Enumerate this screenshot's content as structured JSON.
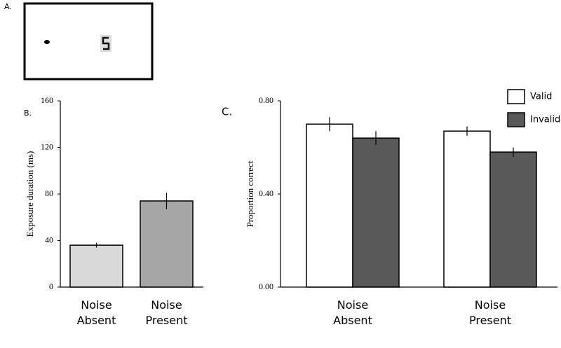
{
  "panel_labels": [
    "A.",
    "B.",
    "C."
  ],
  "chart_data": [
    {
      "type": "bar",
      "y_label": "Exposure duration (ms)",
      "categories": [
        "Noise Absent",
        "Noise Present"
      ],
      "values": [
        36,
        74
      ],
      "errors": [
        2,
        7
      ],
      "colors": [
        "#d9d9d9",
        "#a6a6a6"
      ],
      "ylim": [
        0,
        160
      ],
      "yticks": [
        0,
        40,
        80,
        120,
        160
      ]
    },
    {
      "type": "grouped_bar",
      "y_label": "Proportion correct",
      "categories": [
        "Noise Absent",
        "Noise Present"
      ],
      "series": [
        {
          "name": "Valid",
          "color": "#ffffff",
          "values": [
            0.7,
            0.67
          ],
          "errors": [
            0.03,
            0.02
          ]
        },
        {
          "name": "Invalid",
          "color": "#595959",
          "values": [
            0.64,
            0.58
          ],
          "errors": [
            0.03,
            0.02
          ]
        }
      ],
      "ylim": [
        0,
        0.8
      ],
      "yticks": [
        {
          "value": 0,
          "label": "0.00"
        },
        {
          "value": 0.4,
          "label": "0.40"
        },
        {
          "value": 0.8,
          "label": "0.80"
        }
      ],
      "legend": "top-right"
    }
  ]
}
